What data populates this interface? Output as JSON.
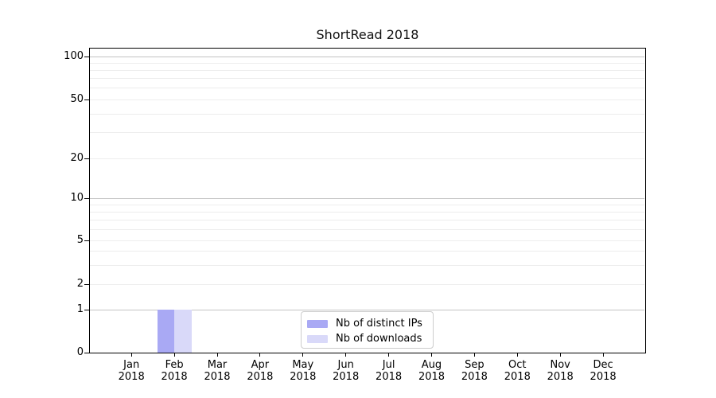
{
  "chart_data": {
    "type": "bar",
    "title": "ShortRead 2018",
    "categories": [
      "Jan",
      "Feb",
      "Mar",
      "Apr",
      "May",
      "Jun",
      "Jul",
      "Aug",
      "Sep",
      "Oct",
      "Nov",
      "Dec"
    ],
    "x_year": "2018",
    "series": [
      {
        "name": "Nb of distinct IPs",
        "color": "#a9a9f4",
        "values": [
          0,
          1,
          0,
          0,
          0,
          0,
          0,
          0,
          0,
          0,
          0,
          0
        ]
      },
      {
        "name": "Nb of downloads",
        "color": "#d9d9f9",
        "values": [
          0,
          1,
          0,
          0,
          0,
          0,
          0,
          0,
          0,
          0,
          0,
          0
        ]
      }
    ],
    "yticks": [
      0,
      1,
      2,
      5,
      10,
      20,
      50,
      100
    ],
    "ylim": [
      0,
      120
    ],
    "yscale": "linear-below-1-log-above",
    "grid": "horizontal",
    "legend_position": "lower center"
  }
}
